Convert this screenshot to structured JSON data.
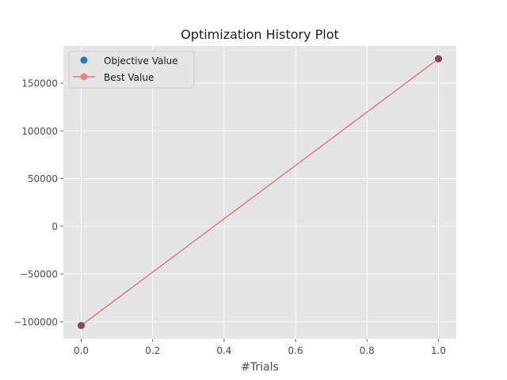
{
  "chart_data": {
    "type": "line",
    "title": "Optimization History Plot",
    "xlabel": "#Trials",
    "ylabel": "",
    "xlim": [
      -0.05,
      1.05
    ],
    "ylim": [
      -118000,
      189000
    ],
    "x_ticks": [
      0.0,
      0.2,
      0.4,
      0.6,
      0.8,
      1.0
    ],
    "x_tick_labels": [
      "0.0",
      "0.2",
      "0.4",
      "0.6",
      "0.8",
      "1.0"
    ],
    "y_ticks": [
      -100000,
      -50000,
      0,
      50000,
      100000,
      150000
    ],
    "y_tick_labels": [
      "−100000",
      "−50000",
      "0",
      "50000",
      "100000",
      "150000"
    ],
    "grid": true,
    "legend_placement": "top-left",
    "series": [
      {
        "name": "Objective Value",
        "kind": "scatter",
        "color": "#1f77b4",
        "x": [
          0,
          1
        ],
        "y": [
          -104000,
          175500
        ]
      },
      {
        "name": "Best Value",
        "kind": "line",
        "color": "#e07b73",
        "x": [
          0,
          1
        ],
        "y": [
          -104000,
          175500
        ]
      }
    ]
  },
  "colors": {
    "plot_background": "#e5e5e5",
    "grid": "#ffffff",
    "objective_marker": "#1f77b4",
    "best_line": "#e07b73",
    "overlap_marker": "#8e4756"
  }
}
